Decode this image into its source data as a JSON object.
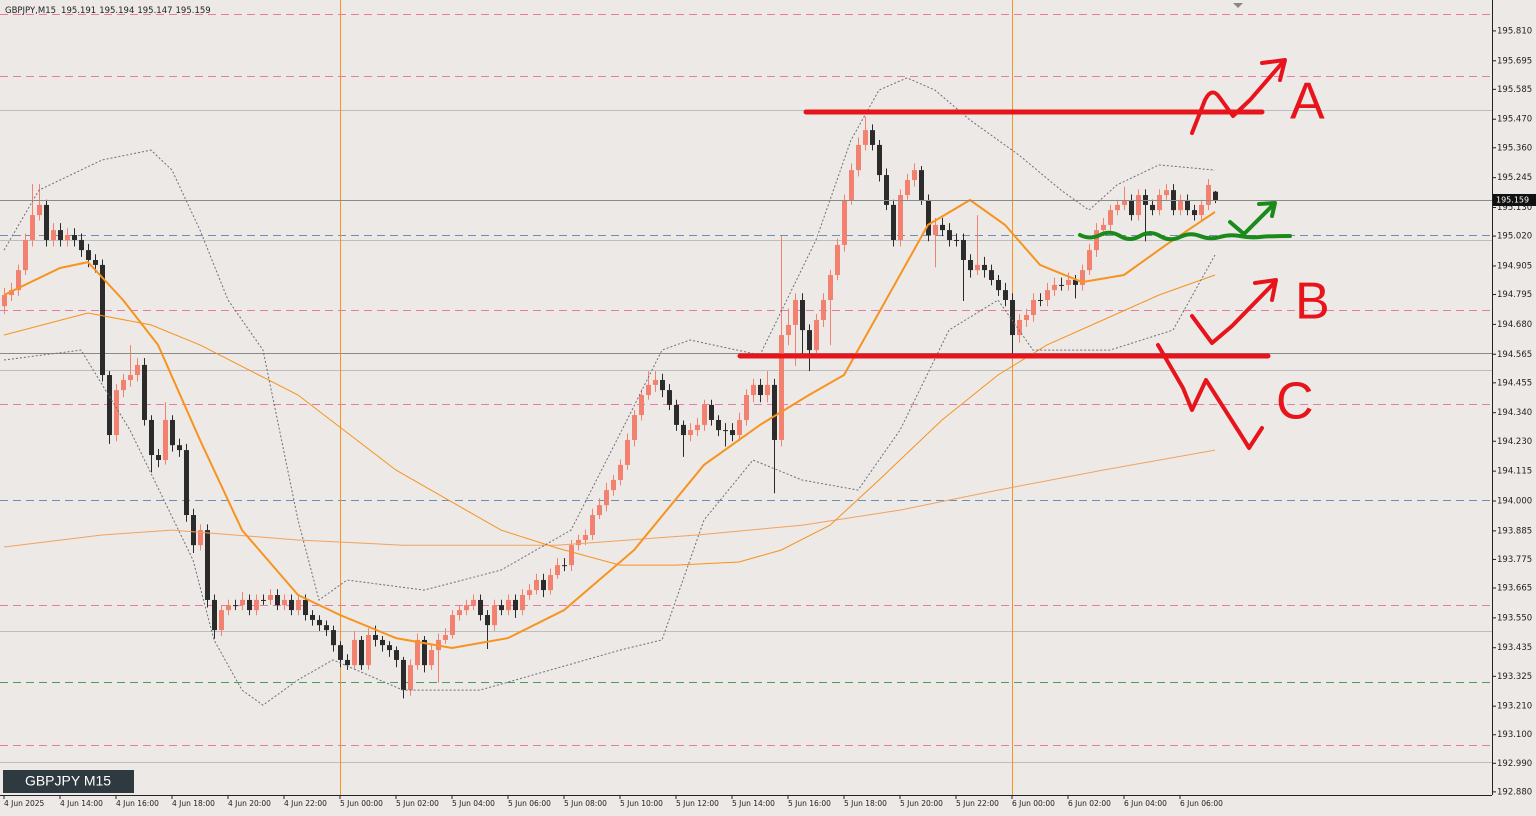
{
  "chart_data": {
    "type": "candlestick",
    "symbol": "GBPJPY,M15",
    "label": "GBPJPY M15",
    "annotations": [
      "A",
      "B",
      "C"
    ],
    "up_color": "#f2826f",
    "down_color": "#2b2b2b",
    "xlim": [
      -0.571,
      212.571
    ],
    "ylim": [
      192.868,
      195.929
    ],
    "yticks": [
      {
        "value": 195.81,
        "label": "195.810"
      },
      195.695,
      195.585,
      {
        "value": 195.47,
        "label": "195.470"
      },
      {
        "value": 195.36,
        "label": "195.360"
      },
      195.245,
      {
        "value": 195.13,
        "label": "195.130"
      },
      {
        "value": 195.02,
        "label": "195.020"
      },
      194.905,
      194.795,
      {
        "value": 194.68,
        "label": "194.680"
      },
      194.565,
      194.455,
      {
        "value": 194.34,
        "label": "194.340"
      },
      {
        "value": 194.23,
        "label": "194.230"
      },
      194.115,
      {
        "value": 194,
        "label": "194.000"
      },
      193.885,
      193.775,
      193.665,
      {
        "value": 193.55,
        "label": "193.550"
      },
      193.435,
      193.325,
      {
        "value": 193.21,
        "label": "193.210"
      },
      {
        "value": 193.1,
        "label": "193.100"
      },
      {
        "value": 192.99,
        "label": "192.990"
      },
      {
        "value": 192.88,
        "label": "192.880"
      }
    ],
    "xticks": [
      {
        "value": 0,
        "label": "4 Jun 2025"
      },
      {
        "value": 8,
        "label": "4 Jun 14:00"
      },
      {
        "value": 16,
        "label": "4 Jun 16:00"
      },
      {
        "value": 24,
        "label": "4 Jun 18:00"
      },
      {
        "value": 32,
        "label": "4 Jun 20:00"
      },
      {
        "value": 40,
        "label": "4 Jun 22:00"
      },
      {
        "value": 48,
        "label": "5 Jun 00:00"
      },
      {
        "value": 56,
        "label": "5 Jun 02:00"
      },
      {
        "value": 64,
        "label": "5 Jun 04:00"
      },
      {
        "value": 72,
        "label": "5 Jun 06:00"
      },
      {
        "value": 80,
        "label": "5 Jun 08:00"
      },
      {
        "value": 88,
        "label": "5 Jun 10:00"
      },
      {
        "value": 96,
        "label": "5 Jun 12:00"
      },
      {
        "value": 104,
        "label": "5 Jun 14:00"
      },
      {
        "value": 112,
        "label": "5 Jun 16:00"
      },
      {
        "value": 120,
        "label": "5 Jun 18:00"
      },
      {
        "value": 128,
        "label": "5 Jun 20:00"
      },
      {
        "value": 136,
        "label": "5 Jun 22:00"
      },
      {
        "value": 144,
        "label": "6 Jun 00:00"
      },
      {
        "value": 152,
        "label": "6 Jun 02:00"
      },
      {
        "value": 160,
        "label": "6 Jun 04:00"
      },
      {
        "value": 168,
        "label": "6 Jun 06:00"
      }
    ],
    "vlines": [
      {
        "value": 48,
        "color": "#f7931e"
      },
      {
        "value": 144,
        "color": "#f7931e"
      }
    ],
    "hlines": [
      {
        "value": 195.875,
        "color": "#e87aa8",
        "style": "dashed"
      },
      {
        "value": 195.636,
        "color": "#e87aa8",
        "style": "dashed"
      },
      {
        "value": 195.505,
        "color": "#bdbdbd",
        "style": "solid"
      },
      {
        "value": 195.024,
        "color": "#6b8fb5",
        "style": "dashed"
      },
      {
        "value": 195.005,
        "color": "#bdbdbd",
        "style": "solid"
      },
      {
        "value": 194.735,
        "color": "#e87aa8",
        "style": "dashed"
      },
      {
        "value": 194.57,
        "color": "#8a8a8a",
        "style": "solid"
      },
      {
        "value": 194.504,
        "color": "#bdbdbd",
        "style": "solid"
      },
      {
        "value": 194.373,
        "color": "#e87aa8",
        "style": "dashed"
      },
      {
        "value": 194.004,
        "color": "#6b8fb5",
        "style": "dashed"
      },
      {
        "value": 193.599,
        "color": "#e87aa8",
        "style": "dashed"
      },
      {
        "value": 193.499,
        "color": "#bdbdbd",
        "style": "solid"
      },
      {
        "value": 193.303,
        "color": "#4f9a5a",
        "style": "dashed"
      },
      {
        "value": 193.06,
        "color": "#e87aa8",
        "style": "dashed"
      },
      {
        "value": 192.995,
        "color": "#bdbdbd",
        "style": "solid"
      }
    ],
    "open": [
      194.75,
      194.793,
      194.812,
      194.889,
      195.005,
      195.101,
      195.14,
      195.005,
      195.043,
      195.005,
      195.024,
      195.005,
      194.966,
      194.928,
      194.909,
      194.485,
      194.254,
      194.427,
      194.466,
      194.485,
      194.524,
      194.312,
      194.177,
      194.158,
      194.312,
      194.215,
      194.196,
      193.946,
      193.83,
      193.888,
      193.619,
      193.503,
      193.58,
      193.599,
      193.599,
      193.619,
      193.58,
      193.619,
      193.619,
      193.638,
      193.599,
      193.619,
      193.58,
      193.619,
      193.561,
      193.542,
      193.522,
      193.503,
      193.445,
      193.388,
      193.368,
      193.465,
      193.368,
      193.484,
      193.465,
      193.445,
      193.426,
      193.388,
      193.272,
      193.368,
      193.465,
      193.368,
      193.426,
      193.465,
      193.484,
      193.561,
      193.58,
      193.599,
      193.619,
      193.561,
      193.522,
      193.599,
      193.58,
      193.619,
      193.58,
      193.638,
      193.657,
      193.696,
      193.657,
      193.715,
      193.753,
      193.753,
      193.83,
      193.85,
      193.869,
      193.946,
      193.984,
      194.042,
      194.081,
      194.139,
      194.235,
      194.331,
      194.408,
      194.447,
      194.466,
      194.427,
      194.37,
      194.293,
      194.254,
      194.273,
      194.293,
      194.37,
      194.312,
      194.273,
      194.273,
      194.254,
      194.312,
      194.408,
      194.447,
      194.408,
      194.447,
      194.235,
      194.639,
      194.678,
      194.774,
      194.658,
      194.581,
      194.697,
      194.774,
      194.87,
      194.986,
      195.159,
      195.274,
      195.371,
      195.428,
      195.371,
      195.255,
      195.14,
      195.005,
      195.178,
      195.236,
      195.274,
      195.159,
      195.024,
      195.063,
      195.043,
      195.005,
      195.005,
      194.928,
      194.889,
      194.909,
      194.889,
      194.851,
      194.812,
      194.774,
      194.639,
      194.697,
      194.716,
      194.774,
      194.774,
      194.812,
      194.832,
      194.832,
      194.851,
      194.832,
      194.889,
      194.966,
      195.043,
      195.063,
      195.12,
      195.14,
      195.159,
      195.101,
      195.178,
      195.14,
      195.12,
      195.178,
      195.197,
      195.12,
      195.159,
      195.12,
      195.101,
      195.14,
      195.191
    ],
    "high": [
      194.82,
      194.84,
      194.91,
      195.03,
      195.22,
      195.22,
      195.16,
      195.07,
      195.07,
      195.05,
      195.05,
      195.03,
      194.99,
      194.95,
      194.93,
      194.5,
      194.45,
      194.49,
      194.6,
      194.55,
      194.55,
      194.33,
      194.2,
      194.38,
      194.33,
      194.24,
      194.22,
      193.97,
      193.91,
      193.91,
      193.64,
      193.6,
      193.62,
      193.62,
      193.65,
      193.64,
      193.64,
      193.64,
      193.66,
      193.66,
      193.64,
      193.64,
      193.64,
      193.64,
      193.58,
      193.56,
      193.54,
      193.52,
      193.46,
      193.41,
      193.5,
      193.48,
      193.51,
      193.52,
      193.48,
      193.46,
      193.44,
      193.4,
      193.39,
      193.49,
      193.48,
      193.45,
      193.49,
      193.51,
      193.58,
      193.6,
      193.62,
      193.64,
      193.64,
      193.58,
      193.62,
      193.62,
      193.64,
      193.64,
      193.66,
      193.68,
      193.72,
      193.72,
      193.74,
      193.78,
      193.78,
      193.85,
      193.87,
      193.89,
      193.97,
      194.01,
      194.07,
      194.1,
      194.16,
      194.26,
      194.35,
      194.43,
      194.5,
      194.5,
      194.49,
      194.45,
      194.39,
      194.31,
      194.3,
      194.32,
      194.39,
      194.39,
      194.33,
      194.3,
      194.3,
      194.34,
      194.43,
      194.47,
      194.47,
      194.5,
      194.47,
      195.02,
      194.74,
      194.8,
      194.8,
      194.68,
      194.72,
      194.8,
      194.89,
      195.01,
      195.18,
      195.3,
      195.4,
      195.48,
      195.45,
      195.39,
      195.28,
      195.16,
      195.2,
      195.26,
      195.3,
      195.29,
      195.18,
      195.09,
      195.09,
      195.07,
      195.03,
      195.03,
      194.95,
      195.1,
      194.94,
      194.91,
      194.87,
      194.84,
      194.8,
      194.72,
      194.74,
      194.8,
      194.8,
      194.84,
      194.86,
      194.86,
      194.88,
      194.87,
      194.91,
      194.99,
      195.07,
      195.09,
      195.14,
      195.16,
      195.21,
      195.18,
      195.2,
      195.2,
      195.16,
      195.2,
      195.22,
      195.22,
      195.18,
      195.18,
      195.14,
      195.16,
      195.24,
      195.194
    ],
    "low": [
      194.72,
      194.77,
      194.79,
      194.87,
      194.98,
      195.08,
      194.98,
      194.98,
      194.98,
      194.98,
      194.98,
      194.94,
      194.9,
      194.88,
      194.46,
      194.22,
      194.23,
      194.4,
      194.44,
      194.46,
      194.29,
      194.11,
      194.13,
      194.14,
      194.19,
      194.17,
      193.92,
      193.8,
      193.81,
      193.59,
      193.47,
      193.48,
      193.56,
      193.58,
      193.58,
      193.56,
      193.56,
      193.6,
      193.6,
      193.58,
      193.58,
      193.56,
      193.56,
      193.54,
      193.52,
      193.5,
      193.48,
      193.42,
      193.36,
      193.35,
      193.35,
      193.35,
      193.35,
      193.44,
      193.42,
      193.4,
      193.36,
      193.24,
      193.25,
      193.35,
      193.34,
      193.35,
      193.3,
      193.45,
      193.47,
      193.54,
      193.56,
      193.58,
      193.54,
      193.43,
      193.5,
      193.56,
      193.56,
      193.55,
      193.56,
      193.62,
      193.64,
      193.63,
      193.64,
      193.7,
      193.73,
      193.73,
      193.81,
      193.83,
      193.85,
      193.93,
      193.96,
      194.02,
      194.06,
      194.12,
      194.21,
      194.31,
      194.39,
      194.42,
      194.4,
      194.35,
      194.27,
      194.17,
      194.23,
      194.25,
      194.27,
      194.29,
      194.25,
      194.21,
      194.23,
      194.23,
      194.29,
      194.38,
      194.38,
      194.38,
      194.03,
      194.21,
      194.6,
      194.52,
      194.56,
      194.5,
      194.56,
      194.67,
      194.6,
      194.85,
      194.96,
      195.14,
      195.25,
      195.35,
      195.35,
      195.23,
      195.12,
      194.98,
      194.98,
      195.16,
      195.21,
      195.14,
      195.0,
      194.9,
      195.02,
      194.98,
      194.98,
      194.77,
      194.86,
      194.87,
      194.86,
      194.83,
      194.79,
      194.75,
      194.56,
      194.61,
      194.67,
      194.69,
      194.75,
      194.75,
      194.79,
      194.81,
      194.81,
      194.78,
      194.81,
      194.87,
      194.94,
      195.02,
      195.04,
      195.1,
      195.12,
      195.08,
      195.08,
      195.0,
      195.1,
      195.1,
      195.16,
      195.1,
      195.1,
      195.1,
      195.08,
      195.08,
      195.12,
      195.147
    ],
    "close": [
      194.793,
      194.812,
      194.889,
      195.005,
      195.101,
      195.14,
      195.005,
      195.043,
      195.005,
      195.024,
      195.005,
      194.966,
      194.928,
      194.909,
      194.485,
      194.254,
      194.427,
      194.466,
      194.485,
      194.524,
      194.312,
      194.177,
      194.158,
      194.312,
      194.215,
      194.196,
      193.946,
      193.83,
      193.888,
      193.619,
      193.503,
      193.58,
      193.599,
      193.599,
      193.619,
      193.58,
      193.619,
      193.619,
      193.638,
      193.599,
      193.619,
      193.58,
      193.619,
      193.561,
      193.542,
      193.522,
      193.503,
      193.445,
      193.388,
      193.368,
      193.465,
      193.368,
      193.484,
      193.465,
      193.445,
      193.426,
      193.388,
      193.272,
      193.368,
      193.465,
      193.368,
      193.426,
      193.465,
      193.484,
      193.561,
      193.58,
      193.599,
      193.619,
      193.561,
      193.522,
      193.599,
      193.58,
      193.619,
      193.58,
      193.638,
      193.657,
      193.696,
      193.657,
      193.715,
      193.753,
      193.753,
      193.83,
      193.85,
      193.869,
      193.946,
      193.984,
      194.042,
      194.081,
      194.139,
      194.235,
      194.331,
      194.408,
      194.447,
      194.466,
      194.427,
      194.37,
      194.293,
      194.254,
      194.273,
      194.293,
      194.37,
      194.312,
      194.273,
      194.273,
      194.254,
      194.312,
      194.408,
      194.447,
      194.408,
      194.447,
      194.235,
      194.639,
      194.678,
      194.774,
      194.658,
      194.581,
      194.697,
      194.774,
      194.87,
      194.986,
      195.159,
      195.274,
      195.371,
      195.428,
      195.371,
      195.255,
      195.14,
      195.005,
      195.178,
      195.236,
      195.274,
      195.159,
      195.024,
      195.063,
      195.043,
      195.005,
      195.005,
      194.928,
      194.889,
      194.909,
      194.889,
      194.851,
      194.812,
      194.774,
      194.639,
      194.697,
      194.716,
      194.774,
      194.774,
      194.812,
      194.832,
      194.832,
      194.851,
      194.832,
      194.889,
      194.966,
      195.043,
      195.063,
      195.12,
      195.14,
      195.159,
      195.101,
      195.178,
      195.14,
      195.12,
      195.178,
      195.197,
      195.12,
      195.159,
      195.12,
      195.101,
      195.14,
      195.217,
      195.159
    ],
    "indicators": [
      {
        "color": "#f2a25e",
        "width": 1,
        "dash": false,
        "x": [
          0,
          14,
          24,
          42,
          57,
          79,
          99,
          114,
          128,
          142,
          157,
          173
        ],
        "values": [
          193.823,
          193.869,
          193.888,
          193.85,
          193.83,
          193.83,
          193.869,
          193.907,
          193.965,
          194.042,
          194.119,
          194.196
        ]
      },
      {
        "color": "#f7931e",
        "width": 1,
        "dash": false,
        "x": [
          0,
          12,
          21,
          28,
          42,
          56,
          71,
          79,
          88,
          96,
          105,
          111,
          118,
          125,
          134,
          142,
          149,
          157,
          165,
          173
        ],
        "values": [
          194.639,
          194.724,
          194.678,
          194.601,
          194.408,
          194.119,
          193.888,
          193.819,
          193.753,
          193.753,
          193.765,
          193.811,
          193.907,
          194.081,
          194.312,
          194.485,
          194.601,
          194.697,
          194.793,
          194.87
        ]
      },
      {
        "color": "#6e6e78",
        "width": 1,
        "dash": true,
        "x": [
          0,
          5,
          14,
          21,
          24,
          28,
          32,
          37,
          42,
          45,
          49,
          60,
          71,
          81,
          89,
          94,
          98,
          108,
          116,
          121,
          125,
          129,
          133,
          138,
          145,
          151,
          155,
          159,
          165,
          173
        ],
        "values": [
          194.966,
          195.197,
          195.313,
          195.351,
          195.274,
          195.043,
          194.774,
          194.581,
          193.927,
          193.619,
          193.696,
          193.657,
          193.734,
          193.888,
          194.312,
          194.581,
          194.62,
          194.562,
          195.005,
          195.39,
          195.582,
          195.629,
          195.582,
          195.467,
          195.332,
          195.197,
          195.12,
          195.217,
          195.294,
          195.274
        ]
      },
      {
        "color": "#6e6e78",
        "width": 1,
        "dash": true,
        "x": [
          0,
          11,
          18,
          27,
          30,
          34,
          37,
          42,
          47,
          57,
          68,
          78,
          88,
          94,
          100,
          107,
          114,
          122,
          128,
          135,
          142,
          147,
          158,
          167,
          173
        ],
        "values": [
          194.543,
          194.581,
          194.273,
          193.773,
          193.465,
          193.272,
          193.214,
          193.311,
          193.388,
          193.272,
          193.272,
          193.349,
          193.426,
          193.465,
          193.927,
          194.158,
          194.081,
          194.042,
          194.273,
          194.658,
          194.774,
          194.581,
          194.581,
          194.658,
          194.947
        ]
      },
      {
        "color": "#f7931e",
        "width": 2,
        "dash": false,
        "x": [
          0,
          8,
          12,
          17,
          22,
          28,
          34,
          42,
          48,
          56,
          64,
          72,
          80,
          90,
          100,
          108,
          115,
          120,
          126,
          132,
          138,
          143,
          148,
          154,
          160,
          166,
          173
        ],
        "values": [
          194.793,
          194.897,
          194.92,
          194.774,
          194.601,
          194.235,
          193.888,
          193.638,
          193.561,
          193.472,
          193.434,
          193.472,
          193.58,
          193.811,
          194.139,
          194.293,
          194.408,
          194.485,
          194.774,
          195.063,
          195.159,
          195.063,
          194.909,
          194.843,
          194.87,
          194.986,
          195.113
        ]
      }
    ]
  }
}
